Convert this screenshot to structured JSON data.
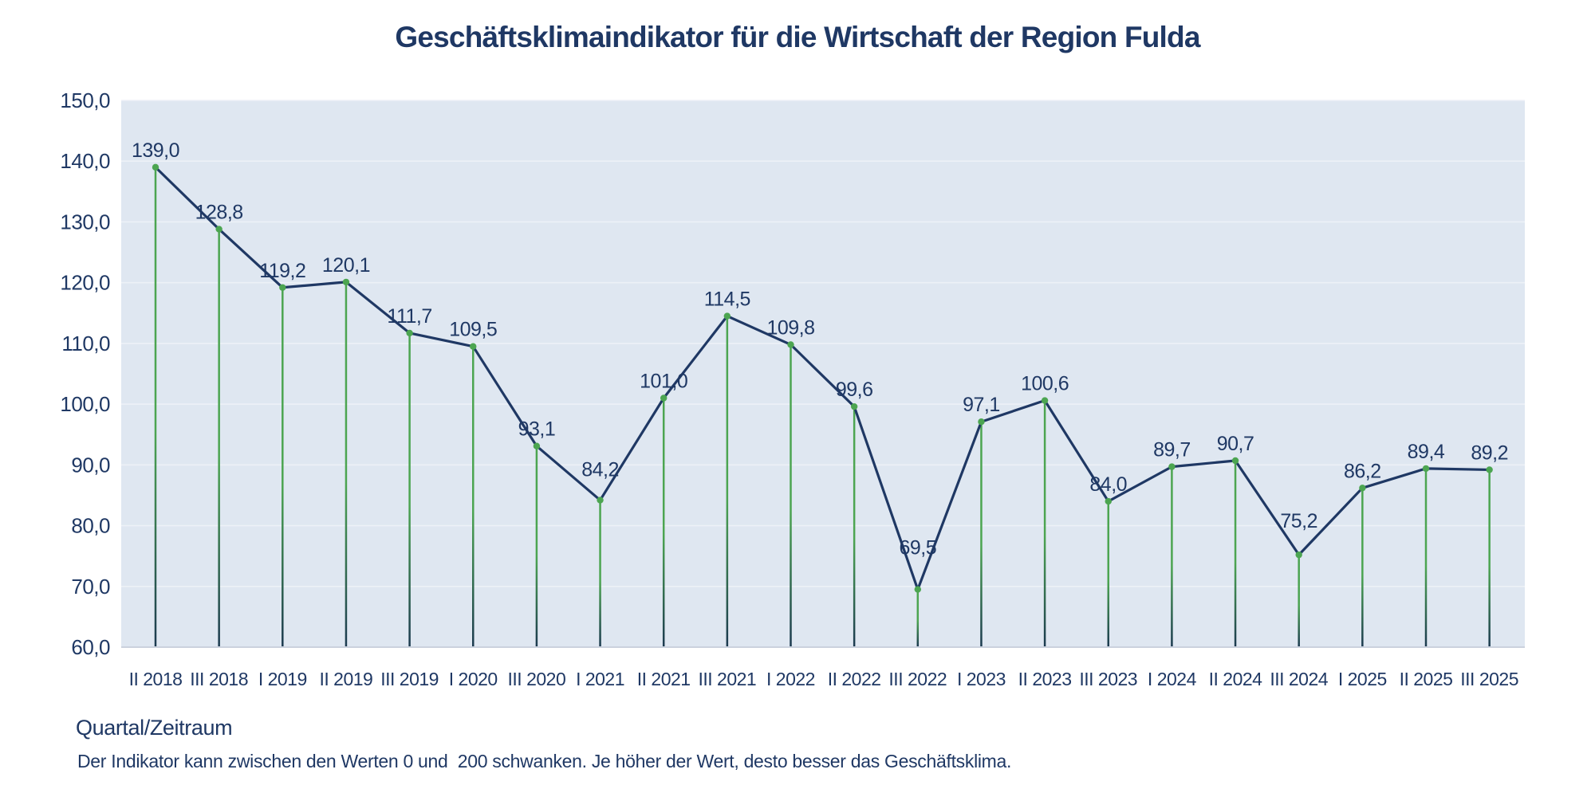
{
  "chart_data": {
    "type": "line",
    "title": "Geschäftsklimaindikator für die Wirtschaft der Region Fulda",
    "xlabel": "Quartal/Zeitraum",
    "note": "Der Indikator kann zwischen den Werten 0 und  200 schwanken. Je höher der Wert, desto besser das Geschäftsklima.",
    "categories": [
      "II 2018",
      "III 2018",
      "I 2019",
      "II 2019",
      "III 2019",
      "I 2020",
      "III 2020",
      "I 2021",
      "II 2021",
      "III 2021",
      "I 2022",
      "II 2022",
      "III 2022",
      "I 2023",
      "II 2023",
      "III 2023",
      "I 2024",
      "II 2024",
      "III 2024",
      "I 2025",
      "II 2025",
      "III 2025"
    ],
    "values": [
      139.0,
      128.8,
      119.2,
      120.1,
      111.7,
      109.5,
      93.1,
      84.2,
      101.0,
      114.5,
      109.8,
      99.6,
      69.5,
      97.1,
      100.6,
      84.0,
      89.7,
      90.7,
      75.2,
      86.2,
      89.4,
      89.2
    ],
    "value_labels": [
      "139,0",
      "128,8",
      "119,2",
      "120,1",
      "111,7",
      "109,5",
      "93,1",
      "84,2",
      "101,0",
      "114,5",
      "109,8",
      "99,6",
      "69,5",
      "97,1",
      "100,6",
      "84,0",
      "89,7",
      "90,7",
      "75,2",
      "86,2",
      "89,4",
      "89,2"
    ],
    "y_axis": {
      "min": 60,
      "max": 150,
      "step": 10,
      "tick_values": [
        150,
        140,
        130,
        120,
        110,
        100,
        90,
        80,
        70,
        60
      ],
      "tick_labels": [
        "150,0",
        "140,0",
        "130,0",
        "120,0",
        "110,0",
        "100,0",
        "90,0",
        "80,0",
        "70,0",
        "60,0"
      ]
    },
    "grid": true,
    "legend": false,
    "colors": {
      "text": "#1F3864",
      "line": "#1F3864",
      "marker": "#4CA551",
      "drop_line_top": "#4CA551",
      "drop_line_bottom": "#1C3A50",
      "plot_bg": "#DFE7F1",
      "grid": "#EDF1F7",
      "axis_line": "#CBD2DE"
    }
  }
}
